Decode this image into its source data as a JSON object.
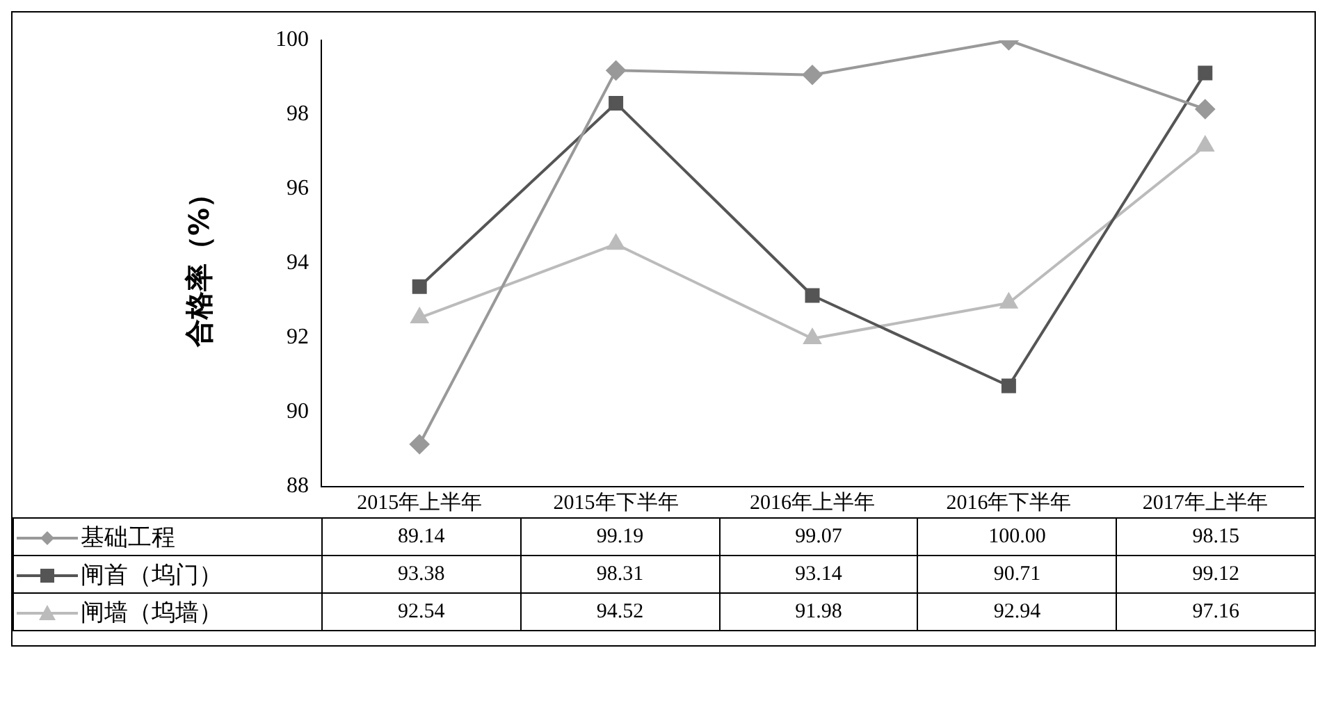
{
  "chart_data": {
    "type": "line",
    "ylabel": "合格率（%）",
    "categories": [
      "2015年上半年",
      "2015年下半年",
      "2016年上半年",
      "2016年下半年",
      "2017年上半年"
    ],
    "series": [
      {
        "name": "基础工程",
        "color": "#999999",
        "marker": "diamond",
        "values": [
          89.14,
          99.19,
          99.07,
          100.0,
          98.15
        ],
        "value_labels": [
          "89.14",
          "99.19",
          "99.07",
          "100.00",
          "98.15"
        ]
      },
      {
        "name": "闸首（坞门）",
        "color": "#555555",
        "marker": "square",
        "values": [
          93.38,
          98.31,
          93.14,
          90.71,
          99.12
        ],
        "value_labels": [
          "93.38",
          "98.31",
          "93.14",
          "90.71",
          "99.12"
        ]
      },
      {
        "name": "闸墙（坞墙）",
        "color": "#bbbbbb",
        "marker": "triangle",
        "values": [
          92.54,
          94.52,
          91.98,
          92.94,
          97.16
        ],
        "value_labels": [
          "92.54",
          "94.52",
          "91.98",
          "92.94",
          "97.16"
        ]
      }
    ],
    "ylim": [
      88,
      100
    ],
    "yticks": [
      88,
      90,
      92,
      94,
      96,
      98,
      100
    ],
    "grid": false,
    "legend": "bottom left",
    "line_style": "solid"
  }
}
